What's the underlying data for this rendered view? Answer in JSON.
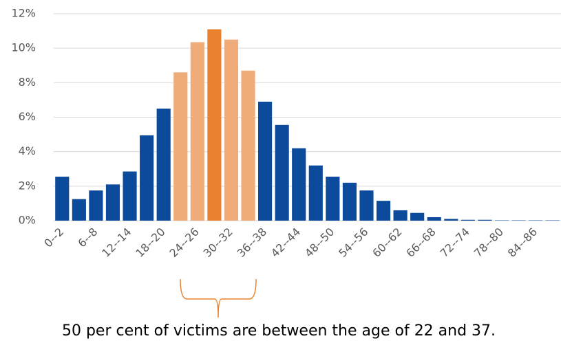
{
  "chart_data": {
    "type": "bar",
    "categories": [
      "0--2",
      null,
      "6--8",
      null,
      "12--14",
      null,
      "18--20",
      null,
      "24--26",
      null,
      "30--32",
      null,
      "36--38",
      null,
      "42--44",
      null,
      "48--50",
      null,
      "54--56",
      null,
      "60--62",
      null,
      "66--68",
      null,
      "72--74",
      null,
      "78--80",
      null,
      "84--86",
      null
    ],
    "values": [
      2.55,
      1.25,
      1.75,
      2.1,
      2.85,
      4.95,
      6.5,
      8.6,
      10.35,
      11.1,
      10.5,
      8.7,
      6.9,
      5.55,
      4.2,
      3.2,
      2.55,
      2.2,
      1.75,
      1.15,
      0.6,
      0.45,
      0.2,
      0.1,
      0.05,
      0.05,
      0.02,
      0.02,
      0.02,
      0.02
    ],
    "colors": [
      "#0c4a9b",
      "#0c4a9b",
      "#0c4a9b",
      "#0c4a9b",
      "#0c4a9b",
      "#0c4a9b",
      "#0c4a9b",
      "#f0ac78",
      "#f0ac78",
      "#e8822e",
      "#f0ac78",
      "#f0ac78",
      "#0c4a9b",
      "#0c4a9b",
      "#0c4a9b",
      "#0c4a9b",
      "#0c4a9b",
      "#0c4a9b",
      "#0c4a9b",
      "#0c4a9b",
      "#0c4a9b",
      "#0c4a9b",
      "#0c4a9b",
      "#0c4a9b",
      "#0c4a9b",
      "#0c4a9b",
      "#0c4a9b",
      "#0c4a9b",
      "#0c4a9b",
      "#0c4a9b"
    ],
    "ylim": [
      0,
      12
    ],
    "yticks": [
      {
        "value": 0,
        "label": "0%"
      },
      {
        "value": 2,
        "label": "2%"
      },
      {
        "value": 4,
        "label": "4%"
      },
      {
        "value": 6,
        "label": "6%"
      },
      {
        "value": 8,
        "label": "8%"
      },
      {
        "value": 10,
        "label": "10%"
      },
      {
        "value": 12,
        "label": "12%"
      }
    ],
    "grid": true,
    "annotation": "50 per cent of victims are between the age of 22 and 37."
  }
}
